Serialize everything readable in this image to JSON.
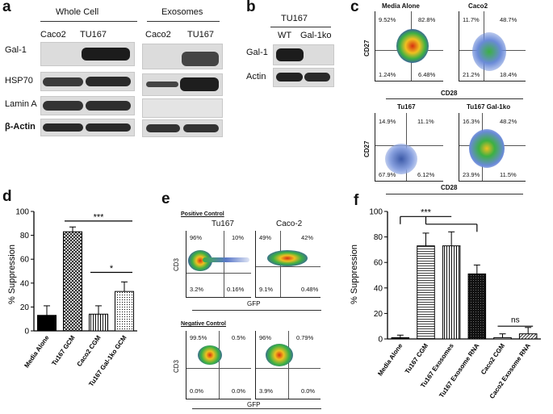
{
  "panel_a": {
    "label": "a",
    "whole_cell": "Whole Cell",
    "exosomes": "Exosomes",
    "columns": [
      "Caco2",
      "TU167",
      "Caco2",
      "TU167"
    ],
    "rows": [
      "Gal-1",
      "HSP70",
      "Lamin A",
      "β-Actin"
    ]
  },
  "panel_b": {
    "label": "b",
    "title": "TU167",
    "columns": [
      "WT",
      "Gal-1ko"
    ],
    "rows": [
      "Gal-1",
      "Actin"
    ]
  },
  "panel_c": {
    "label": "c",
    "plots": [
      {
        "title": "Media Alone",
        "q": [
          "9.52%",
          "82.8%",
          "1.24%",
          "6.48%"
        ]
      },
      {
        "title": "Caco2",
        "q": [
          "11.7%",
          "48.7%",
          "21.2%",
          "18.4%"
        ]
      },
      {
        "title": "Tu167",
        "q": [
          "14.9%",
          "11.1%",
          "67.9%",
          "6.12%"
        ]
      },
      {
        "title": "Tu167 Gal-1ko",
        "q": [
          "16.3%",
          "48.2%",
          "23.9%",
          "11.5%"
        ]
      }
    ],
    "xlabel": "CD28",
    "ylabel": "CD27"
  },
  "panel_d": {
    "label": "d",
    "sig1": "***",
    "sig2": "*",
    "chart_data": {
      "type": "bar",
      "categories": [
        "Media Alone",
        "Tu167 GCM",
        "Caco2 CGM",
        "Tu167 Gal-1ko GCM"
      ],
      "values": [
        13,
        83,
        14,
        33
      ],
      "errors": [
        8,
        4,
        7,
        8
      ],
      "ylabel": "% Suppression",
      "ylim": [
        0,
        100
      ],
      "yticks": [
        "0",
        "20",
        "40",
        "60",
        "80",
        "100"
      ]
    }
  },
  "panel_e": {
    "label": "e",
    "positive_title": "Positive Control",
    "negative_title": "Negative Control",
    "col1": "Tu167",
    "col2": "Caco-2",
    "ylabel": "CD3",
    "xlabel": "GFP",
    "pos_left": [
      "96%",
      "10%",
      "3.2%",
      "0.16%"
    ],
    "pos_right": [
      "49%",
      "42%",
      "9.1%",
      "0.48%"
    ],
    "neg_left": [
      "99.5%",
      "0.5%",
      "0.0%",
      "0.0%"
    ],
    "neg_right": [
      "96%",
      "0.79%",
      "3.9%",
      "0.0%"
    ]
  },
  "panel_f": {
    "label": "f",
    "sig1": "***",
    "sig2": "ns",
    "chart_data": {
      "type": "bar",
      "categories": [
        "Media Alone",
        "Tu167 CGM",
        "Tu167 Exosomes",
        "Tu167 Exosome RNA",
        "Caco2 CGM",
        "Caco2 Exosome RNA"
      ],
      "values": [
        1,
        73,
        73,
        51,
        1,
        4
      ],
      "errors": [
        2,
        10,
        11,
        7,
        3,
        5
      ],
      "ylabel": "% Suppression",
      "ylim": [
        0,
        100
      ],
      "yticks": [
        "0",
        "20",
        "40",
        "60",
        "80",
        "100"
      ]
    }
  }
}
